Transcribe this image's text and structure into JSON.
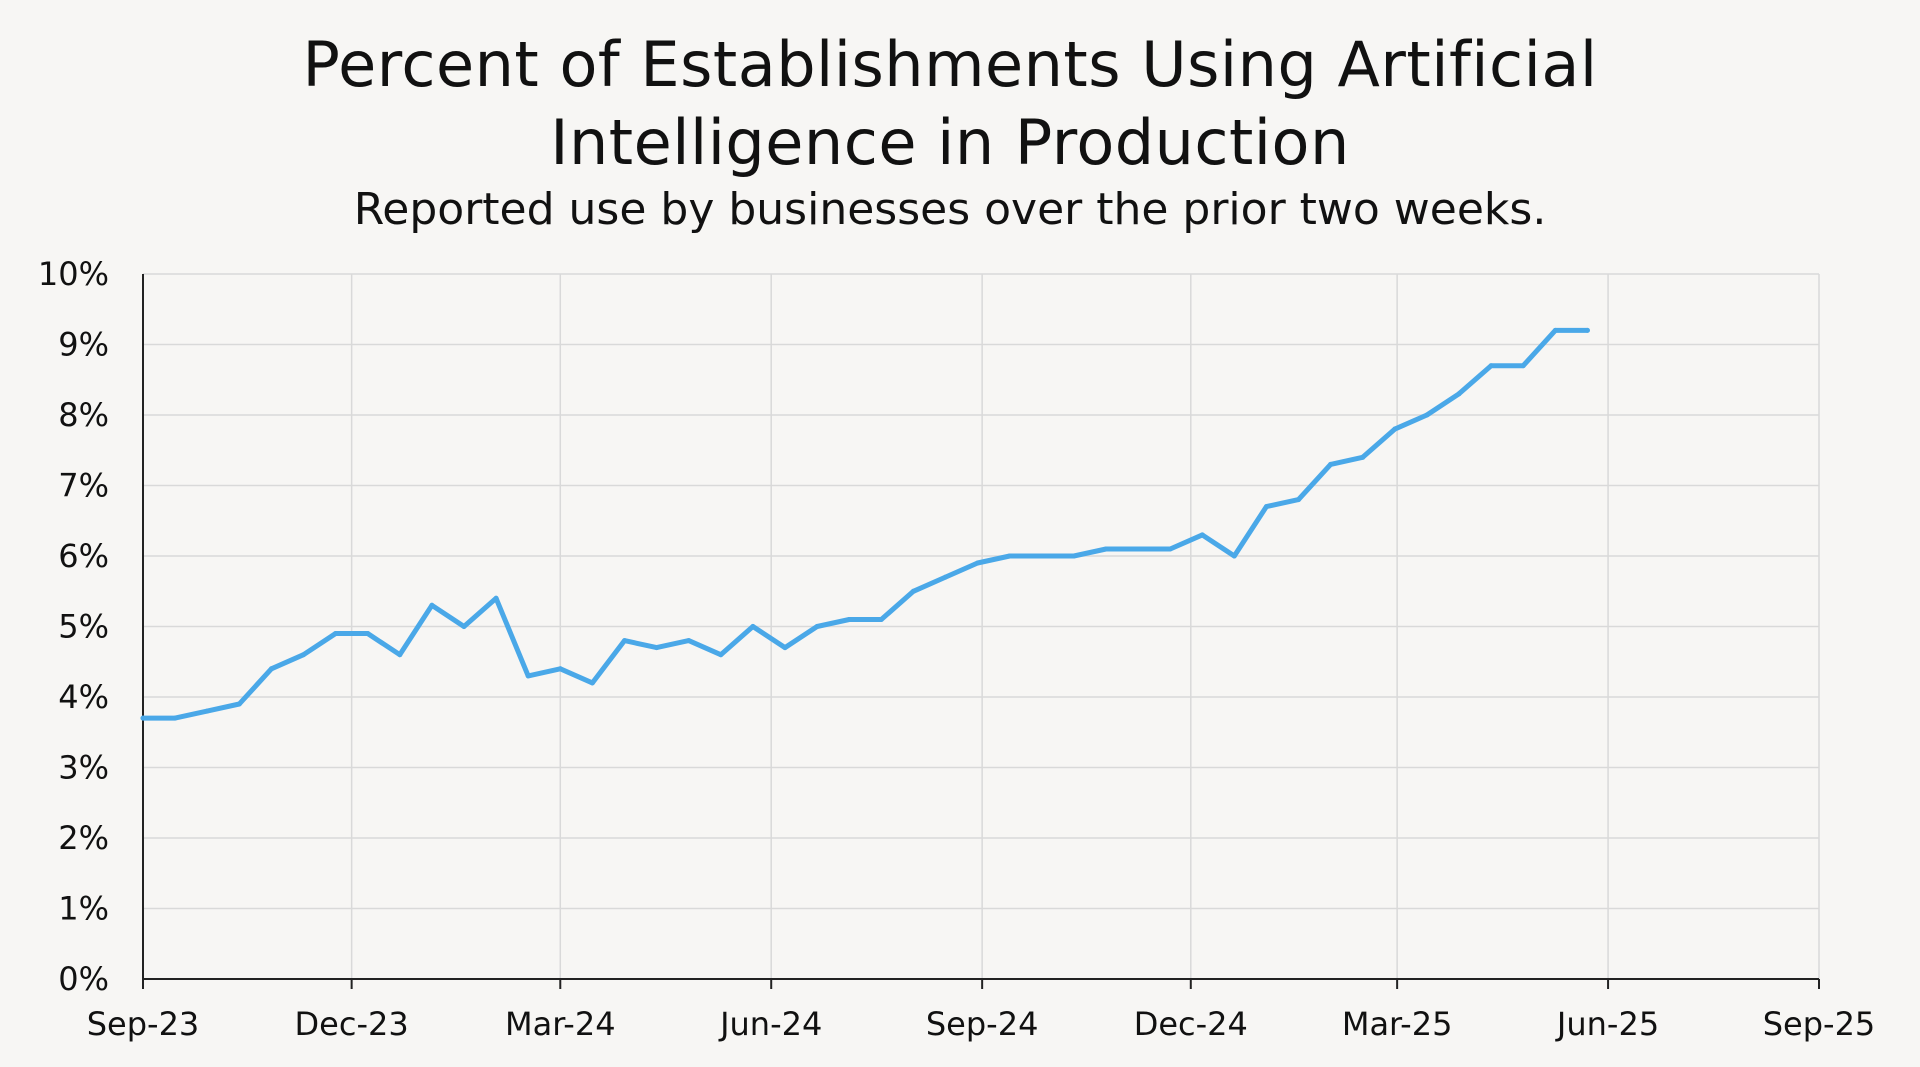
{
  "chart_data": {
    "type": "line",
    "title_line1": "Percent of Establishments Using Artificial",
    "title_line2": "Intelligence in Production",
    "subtitle": "Reported use by businesses over the prior two weeks.",
    "xlabel": "",
    "ylabel": "",
    "ylim": [
      0,
      10
    ],
    "y_ticks": [
      "0%",
      "1%",
      "2%",
      "3%",
      "4%",
      "5%",
      "6%",
      "7%",
      "8%",
      "9%",
      "10%"
    ],
    "x_ticks": [
      "Sep-23",
      "Dec-23",
      "Mar-24",
      "Jun-24",
      "Sep-24",
      "Dec-24",
      "Mar-25",
      "Jun-25",
      "Sep-25"
    ],
    "grid": true,
    "legend": "none",
    "line_color": "#4aa8e8",
    "series": [
      {
        "x": [
          "2023-09-01",
          "2023-09-15",
          "2023-09-29",
          "2023-10-13",
          "2023-10-27",
          "2023-11-10",
          "2023-11-24",
          "2023-12-08",
          "2023-12-22",
          "2024-01-05",
          "2024-01-19",
          "2024-02-02",
          "2024-02-16",
          "2024-03-01",
          "2024-03-15",
          "2024-03-29",
          "2024-04-12",
          "2024-04-26",
          "2024-05-10",
          "2024-05-24",
          "2024-06-07",
          "2024-06-21",
          "2024-07-05",
          "2024-07-19",
          "2024-08-02",
          "2024-08-16",
          "2024-08-30",
          "2024-09-13",
          "2024-09-27",
          "2024-10-11",
          "2024-10-25",
          "2024-11-08",
          "2024-11-22",
          "2024-12-06",
          "2024-12-20",
          "2025-01-03",
          "2025-01-17",
          "2025-01-31",
          "2025-02-14",
          "2025-02-28",
          "2025-03-14",
          "2025-03-28",
          "2025-04-11",
          "2025-04-25",
          "2025-05-09",
          "2025-05-23"
        ],
        "values": [
          3.7,
          3.7,
          3.8,
          3.9,
          4.4,
          4.6,
          4.9,
          4.9,
          4.6,
          5.3,
          5.0,
          5.4,
          4.3,
          4.4,
          4.2,
          4.8,
          4.7,
          4.8,
          4.6,
          5.0,
          4.7,
          5.0,
          5.1,
          5.1,
          5.5,
          5.7,
          5.9,
          6.0,
          6.0,
          6.0,
          6.1,
          6.1,
          6.1,
          6.3,
          6.0,
          6.7,
          6.8,
          7.3,
          7.4,
          7.8,
          8.0,
          8.3,
          8.7,
          8.7,
          9.2,
          9.2
        ]
      }
    ]
  }
}
